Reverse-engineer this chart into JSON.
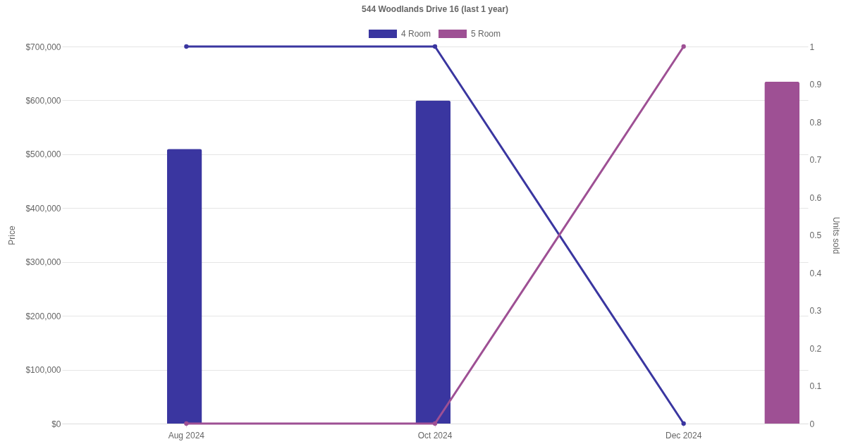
{
  "chart_data": {
    "type": "bar",
    "title": "544 Woodlands Drive 16 (last 1 year)",
    "ylabel": "Price",
    "y2label": "Units sold",
    "categories": [
      "Aug 2024",
      "Oct 2024",
      "Dec 2024"
    ],
    "series": [
      {
        "name": "4 Room",
        "color": "#3a36a0",
        "values": [
          510000,
          600000,
          null
        ]
      },
      {
        "name": "5 Room",
        "color": "#9e5094",
        "values": [
          null,
          null,
          635000
        ]
      },
      {
        "type": "line",
        "axis": "y2",
        "color": "#3a36a0",
        "values": [
          1,
          1,
          0
        ]
      },
      {
        "type": "line",
        "axis": "y2",
        "color": "#9e5094",
        "values": [
          0,
          0,
          1
        ]
      }
    ],
    "ylim": [
      0,
      700000
    ],
    "yticks": [
      {
        "value": 0,
        "label": "$0"
      },
      {
        "value": 100000,
        "label": "$100,000"
      },
      {
        "value": 200000,
        "label": "$200,000"
      },
      {
        "value": 300000,
        "label": "$300,000"
      },
      {
        "value": 400000,
        "label": "$400,000"
      },
      {
        "value": 500000,
        "label": "$500,000"
      },
      {
        "value": 600000,
        "label": "$600,000"
      },
      {
        "value": 700000,
        "label": "$700,000"
      }
    ],
    "y2lim": [
      0,
      1
    ],
    "y2ticks": [
      0,
      0.1,
      0.2,
      0.3,
      0.4,
      0.5,
      0.6,
      0.7,
      0.8,
      0.9,
      1
    ],
    "grid": "y",
    "legend": "top",
    "marker": "circle",
    "line_style": "solid"
  }
}
